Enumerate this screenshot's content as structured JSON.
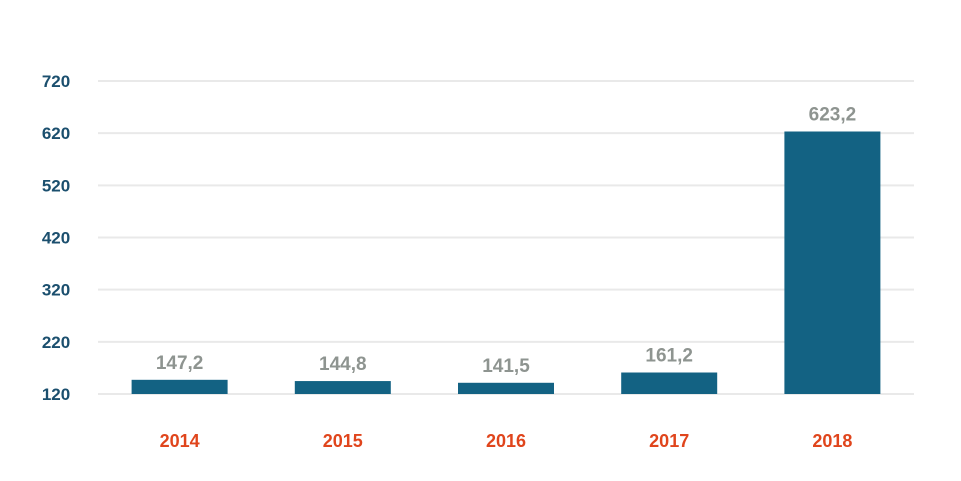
{
  "chart_data": {
    "type": "bar",
    "categories": [
      "2014",
      "2015",
      "2016",
      "2017",
      "2018"
    ],
    "values": [
      147.2,
      144.8,
      141.5,
      161.2,
      623.2
    ],
    "value_labels": [
      "147,2",
      "144,8",
      "141,5",
      "161,2",
      "623,2"
    ],
    "title": "",
    "xlabel": "",
    "ylabel": "",
    "ylim": [
      120,
      720
    ],
    "yticks": [
      120,
      220,
      320,
      420,
      520,
      620,
      720
    ],
    "ytick_labels": [
      "120",
      "220",
      "320",
      "420",
      "520",
      "620",
      "720"
    ],
    "grid": true,
    "legend": "none"
  },
  "colors": {
    "bar": "#136283",
    "ytick_text": "#1b4f6e",
    "xtick_text": "#e0451c",
    "value_label_text": "#8e9490",
    "grid": "#e9e9e9"
  }
}
